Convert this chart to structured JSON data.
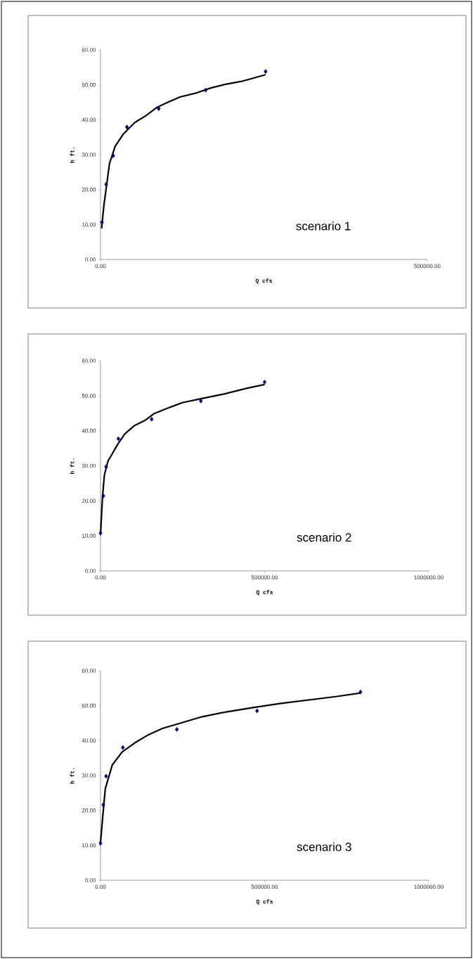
{
  "chart_data": [
    {
      "type": "scatter",
      "xlabel": "Q cfs",
      "ylabel": "h ft.",
      "annotations": [
        "scenario 1"
      ],
      "xlim": [
        0,
        500000
      ],
      "ylim": [
        0,
        60
      ],
      "xticks": [
        {
          "value": 0,
          "label": "0.00"
        },
        {
          "value": 500000,
          "label": "500000.00"
        }
      ],
      "yticks": [
        {
          "value": 0,
          "label": "0.00"
        },
        {
          "value": 10,
          "label": "10.00"
        },
        {
          "value": 20,
          "label": "20.00"
        },
        {
          "value": 30,
          "label": "30.00"
        },
        {
          "value": 40,
          "label": "40.00"
        },
        {
          "value": 50,
          "label": "50.00"
        },
        {
          "value": 60,
          "label": "60.00"
        }
      ],
      "series": [
        {
          "type": "scatter",
          "marker": "diamond",
          "color": "#000080",
          "x": [
            2150,
            8600,
            19400,
            40450,
            89100,
            161000,
            252600
          ],
          "values": [
            10.6,
            21.5,
            29.7,
            37.9,
            43.2,
            48.5,
            53.8
          ]
        },
        {
          "type": "line",
          "marker": "none",
          "line_style": "solid",
          "color": "#000000",
          "x": [
            1700,
            5200,
            13800,
            22400,
            35300,
            52500,
            69700,
            86900,
            104100,
            121300,
            147200,
            168700,
            190200,
            216000,
            252600
          ],
          "values": [
            8.9,
            15.5,
            27.5,
            32.4,
            36.0,
            39.2,
            41.2,
            43.6,
            45.1,
            46.5,
            47.7,
            49.1,
            50.1,
            51.0,
            52.9
          ]
        }
      ]
    },
    {
      "type": "scatter",
      "xlabel": "Q cfs",
      "ylabel": "h ft.",
      "annotations": [
        "scenario 2"
      ],
      "xlim": [
        0,
        1000000
      ],
      "ylim": [
        0,
        60
      ],
      "xticks": [
        {
          "value": 0,
          "label": "0.00"
        },
        {
          "value": 500000,
          "label": "500000.00"
        },
        {
          "value": 1000000,
          "label": "1000000.00"
        }
      ],
      "yticks": [
        {
          "value": 0,
          "label": "0.00"
        },
        {
          "value": 10,
          "label": "10.00"
        },
        {
          "value": 20,
          "label": "20.00"
        },
        {
          "value": 30,
          "label": "30.00"
        },
        {
          "value": 40,
          "label": "40.00"
        },
        {
          "value": 50,
          "label": "50.00"
        },
        {
          "value": 60,
          "label": "60.00"
        }
      ],
      "series": [
        {
          "type": "scatter",
          "marker": "diamond",
          "color": "#000080",
          "x": [
            0,
            8500,
            17000,
            54500,
            155900,
            305800,
            500000
          ],
          "values": [
            10.8,
            21.4,
            29.7,
            37.7,
            43.3,
            48.5,
            53.9
          ]
        },
        {
          "type": "line",
          "marker": "none",
          "line_style": "solid",
          "color": "#000000",
          "x": [
            0,
            6000,
            11900,
            23000,
            35800,
            52800,
            74100,
            103900,
            138000,
            163500,
            206100,
            248700,
            308300,
            376500,
            444600,
            500000
          ],
          "values": [
            10.2,
            21.0,
            27.4,
            31.4,
            33.4,
            36.2,
            39.1,
            41.5,
            43.1,
            44.9,
            46.5,
            48.0,
            49.2,
            50.5,
            52.1,
            53.2
          ]
        }
      ]
    },
    {
      "type": "scatter",
      "xlabel": "Q cfs",
      "ylabel": "h ft.",
      "annotations": [
        "scenario 3"
      ],
      "xlim": [
        0,
        1000000
      ],
      "ylim": [
        0,
        60
      ],
      "xticks": [
        {
          "value": 0,
          "label": "0.00"
        },
        {
          "value": 500000,
          "label": "500000.00"
        },
        {
          "value": 1000000,
          "label": "1000000.00"
        }
      ],
      "yticks": [
        {
          "value": 0,
          "label": "0.00"
        },
        {
          "value": 10,
          "label": "10.00"
        },
        {
          "value": 20,
          "label": "20.00"
        },
        {
          "value": 30,
          "label": "30.00"
        },
        {
          "value": 40,
          "label": "40.00"
        },
        {
          "value": 50,
          "label": "50.00"
        },
        {
          "value": 60,
          "label": "60.00"
        }
      ],
      "series": [
        {
          "type": "scatter",
          "marker": "diamond",
          "color": "#000080",
          "x": [
            0,
            8500,
            17000,
            68100,
            232500,
            477000,
            792200
          ],
          "values": [
            10.6,
            21.6,
            29.8,
            38.0,
            43.2,
            48.5,
            53.9
          ]
        },
        {
          "type": "line",
          "marker": "none",
          "line_style": "solid",
          "color": "#000000",
          "x": [
            0,
            6000,
            14500,
            35800,
            65600,
            103900,
            146500,
            189100,
            240200,
            308300,
            376500,
            461700,
            546900,
            632100,
            717300,
            792200
          ],
          "values": [
            10.8,
            17.3,
            26.2,
            33.0,
            36.7,
            39.3,
            41.7,
            43.5,
            44.9,
            46.8,
            48.1,
            49.4,
            50.6,
            51.6,
            52.6,
            53.6
          ]
        }
      ]
    }
  ]
}
